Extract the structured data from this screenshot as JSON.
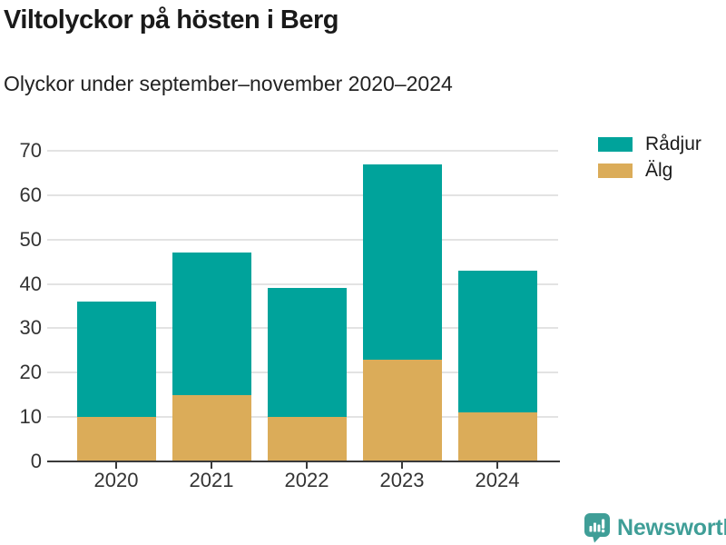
{
  "header": {
    "title": "Viltolyckor på hösten i Berg",
    "subtitle": "Olyckor under september–november 2020–2024"
  },
  "chart_data": {
    "type": "bar",
    "stacked": true,
    "title": "Viltolyckor på hösten i Berg",
    "subtitle": "Olyckor under september–november 2020–2024",
    "categories": [
      "2020",
      "2021",
      "2022",
      "2023",
      "2024"
    ],
    "series": [
      {
        "name": "Älg",
        "color": "#dbac59",
        "values": [
          10,
          15,
          10,
          23,
          11
        ]
      },
      {
        "name": "Rådjur",
        "color": "#00a39b",
        "values": [
          26,
          32,
          29,
          44,
          32
        ]
      }
    ],
    "stack_order": "bottom-to-top",
    "totals": [
      36,
      47,
      39,
      67,
      43
    ],
    "xlabel": "",
    "ylabel": "",
    "ylim": [
      0,
      70
    ],
    "ytick_step": 10,
    "ytick_labels": [
      "0",
      "10",
      "20",
      "30",
      "40",
      "50",
      "60",
      "70"
    ],
    "grid": "horizontal",
    "legend_position": "top-right",
    "legend_items": [
      {
        "label": "Rådjur",
        "color": "#00a39b"
      },
      {
        "label": "Älg",
        "color": "#dbac59"
      }
    ]
  },
  "footer": {
    "brand": "Newsworthy",
    "brand_color": "#3f9e97",
    "logo_icon": "bar-chart-speech-bubble-icon"
  },
  "colors": {
    "radjur": "#00a39b",
    "alg": "#dbac59",
    "gridline": "#e3e3e3",
    "axis": "#3a3a3a",
    "title_text": "#1a1a1a"
  }
}
